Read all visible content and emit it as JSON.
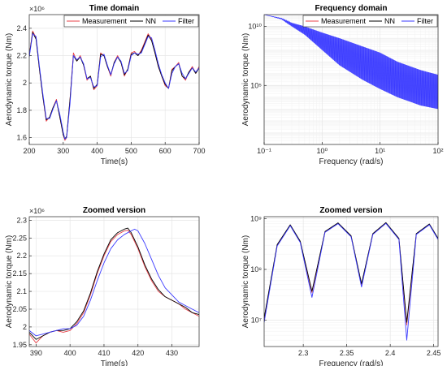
{
  "colors": {
    "Measurement": "#e8434a",
    "NN": "#000000",
    "Filter": "#3a3aff",
    "grid": "#e6e6e6",
    "axis": "#262626"
  },
  "chart_data": [
    {
      "type": "line",
      "title": "Time domain",
      "xlabel": "Time(s)",
      "ylabel": "Aerodynamic torque (Nm)",
      "y_exponent": "×10⁶",
      "xlim": [
        200,
        700
      ],
      "ylim": [
        1.55,
        2.5
      ],
      "xscale": "linear",
      "yscale": "linear",
      "xticks": [
        200,
        300,
        400,
        500,
        600,
        700
      ],
      "yticks": [
        1.6,
        1.8,
        2,
        2.2,
        2.4
      ],
      "ytick_labels": [
        "1.6",
        "1.8",
        "2",
        "2.2",
        "2.4"
      ],
      "grid": true,
      "legend": "top-right",
      "legend_entries": [
        "Measurement",
        "NN",
        "Filter"
      ],
      "series": [
        {
          "name": "Measurement",
          "x": [
            200,
            210,
            220,
            230,
            240,
            250,
            260,
            270,
            280,
            290,
            300,
            305,
            310,
            320,
            330,
            340,
            350,
            360,
            370,
            380,
            390,
            400,
            410,
            420,
            430,
            440,
            450,
            460,
            470,
            480,
            490,
            500,
            510,
            520,
            530,
            540,
            550,
            560,
            570,
            580,
            590,
            600,
            610,
            620,
            630,
            640,
            650,
            660,
            670,
            680,
            690,
            700
          ],
          "y": [
            2.2,
            2.38,
            2.33,
            2.1,
            1.9,
            1.72,
            1.75,
            1.82,
            1.88,
            1.75,
            1.62,
            1.58,
            1.6,
            1.88,
            2.22,
            2.16,
            2.2,
            2.13,
            2.02,
            2.05,
            1.95,
            1.98,
            2.22,
            2.2,
            2.12,
            2.05,
            2.15,
            2.2,
            2.15,
            2.05,
            2.1,
            2.22,
            2.23,
            2.2,
            2.24,
            2.3,
            2.36,
            2.32,
            2.22,
            2.12,
            2.05,
            1.98,
            1.96,
            2.1,
            2.12,
            2.15,
            2.05,
            2.02,
            2.08,
            2.12,
            2.07,
            2.12
          ]
        },
        {
          "name": "NN",
          "x": [
            200,
            210,
            220,
            230,
            240,
            250,
            260,
            270,
            280,
            290,
            300,
            305,
            310,
            320,
            330,
            340,
            350,
            360,
            370,
            380,
            390,
            400,
            410,
            420,
            430,
            440,
            450,
            460,
            470,
            480,
            490,
            500,
            510,
            520,
            530,
            540,
            550,
            560,
            570,
            580,
            590,
            600,
            610,
            620,
            630,
            640,
            650,
            660,
            670,
            680,
            690,
            700
          ],
          "y": [
            2.2,
            2.37,
            2.32,
            2.1,
            1.9,
            1.73,
            1.75,
            1.82,
            1.87,
            1.75,
            1.62,
            1.59,
            1.61,
            1.88,
            2.2,
            2.16,
            2.19,
            2.13,
            2.03,
            2.05,
            1.96,
            1.99,
            2.21,
            2.2,
            2.12,
            2.06,
            2.15,
            2.19,
            2.15,
            2.06,
            2.1,
            2.21,
            2.22,
            2.2,
            2.23,
            2.29,
            2.35,
            2.31,
            2.22,
            2.12,
            2.05,
            1.99,
            1.96,
            2.09,
            2.12,
            2.14,
            2.05,
            2.03,
            2.08,
            2.11,
            2.07,
            2.11
          ]
        },
        {
          "name": "Filter",
          "x": [
            200,
            210,
            220,
            230,
            240,
            250,
            260,
            270,
            280,
            290,
            300,
            305,
            310,
            320,
            330,
            340,
            350,
            360,
            370,
            380,
            390,
            400,
            410,
            420,
            430,
            440,
            450,
            460,
            470,
            480,
            490,
            500,
            510,
            520,
            530,
            540,
            550,
            560,
            570,
            580,
            590,
            600,
            610,
            620,
            630,
            640,
            650,
            660,
            670,
            680,
            690,
            700
          ],
          "y": [
            2.19,
            2.36,
            2.34,
            2.12,
            1.92,
            1.74,
            1.74,
            1.81,
            1.87,
            1.77,
            1.64,
            1.59,
            1.6,
            1.85,
            2.2,
            2.17,
            2.19,
            2.14,
            2.03,
            2.04,
            1.97,
            1.98,
            2.19,
            2.21,
            2.13,
            2.06,
            2.14,
            2.19,
            2.16,
            2.07,
            2.09,
            2.2,
            2.22,
            2.21,
            2.22,
            2.28,
            2.34,
            2.33,
            2.24,
            2.14,
            2.06,
            2.0,
            1.96,
            2.07,
            2.12,
            2.14,
            2.07,
            2.03,
            2.07,
            2.11,
            2.08,
            2.11
          ]
        }
      ]
    },
    {
      "type": "line",
      "title": "Frequency domain",
      "xlabel": "Frequency (rad/s)",
      "ylabel": "Aerodynamic torque (Nm)",
      "xlim": [
        0.1,
        100
      ],
      "ylim": [
        1,
        100000000000
      ],
      "xscale": "log",
      "yscale": "log",
      "xticks": [
        0.1,
        1,
        10,
        100
      ],
      "xtick_labels": [
        "10⁻¹",
        "10⁰",
        "10¹",
        "10²"
      ],
      "yticks": [
        100000,
        10000000000
      ],
      "ytick_labels": [
        "10⁵",
        "10¹⁰"
      ],
      "grid": true,
      "legend": "top-right",
      "legend_entries": [
        "Measurement",
        "NN",
        "Filter"
      ],
      "series": [
        {
          "name": "Filter",
          "x": [
            0.1,
            0.2,
            0.3,
            0.5,
            1,
            2,
            5,
            10,
            20,
            50,
            100
          ],
          "y": [
            100000000000.0,
            50000000000.0,
            20000000000.0,
            10000000000.0,
            3000000000.0,
            1000000000.0,
            200000000.0,
            60000000.0,
            10000000.0,
            2000000.0,
            800000.0
          ],
          "band_low": [
            100000000000.0,
            40000000000.0,
            10000000000.0,
            2000000000.0,
            100000000.0,
            5000000.0,
            300000.0,
            50000.0,
            10000.0,
            2000.0,
            1000.0
          ]
        }
      ]
    },
    {
      "type": "line",
      "title": "Zoomed version",
      "xlabel": "Time(s)",
      "ylabel": "Aerodynamic torque (Nm)",
      "y_exponent": "×10⁶",
      "xlim": [
        388,
        438
      ],
      "ylim": [
        1.945,
        2.31
      ],
      "xscale": "linear",
      "yscale": "linear",
      "xticks": [
        390,
        400,
        410,
        420,
        430
      ],
      "yticks": [
        1.95,
        2,
        2.05,
        2.1,
        2.15,
        2.2,
        2.25,
        2.3
      ],
      "ytick_labels": [
        "1.95",
        "2",
        "2.05",
        "2.1",
        "2.15",
        "2.2",
        "2.25",
        "2.3"
      ],
      "grid": true,
      "series": [
        {
          "name": "Measurement",
          "x": [
            388,
            390,
            392,
            394,
            396,
            398,
            400,
            402,
            404,
            406,
            408,
            410,
            412,
            414,
            416,
            417,
            418,
            420,
            422,
            424,
            426,
            428,
            430,
            432,
            434,
            436,
            438
          ],
          "y": [
            1.98,
            1.955,
            1.975,
            1.985,
            1.99,
            1.985,
            1.99,
            2.01,
            2.04,
            2.09,
            2.15,
            2.2,
            2.24,
            2.26,
            2.27,
            2.272,
            2.26,
            2.22,
            2.17,
            2.13,
            2.1,
            2.085,
            2.075,
            2.065,
            2.05,
            2.04,
            2.03
          ]
        },
        {
          "name": "NN",
          "x": [
            388,
            390,
            392,
            394,
            396,
            398,
            400,
            402,
            404,
            406,
            408,
            410,
            412,
            414,
            416,
            417,
            418,
            420,
            422,
            424,
            426,
            428,
            430,
            432,
            434,
            436,
            438
          ],
          "y": [
            1.985,
            1.965,
            1.975,
            1.985,
            1.99,
            1.99,
            1.995,
            2.015,
            2.045,
            2.095,
            2.155,
            2.205,
            2.245,
            2.265,
            2.275,
            2.278,
            2.265,
            2.225,
            2.175,
            2.135,
            2.105,
            2.085,
            2.075,
            2.065,
            2.055,
            2.04,
            2.035
          ]
        },
        {
          "name": "Filter",
          "x": [
            388,
            390,
            392,
            394,
            396,
            398,
            400,
            402,
            404,
            406,
            408,
            410,
            412,
            414,
            416,
            418,
            419,
            420,
            422,
            424,
            426,
            428,
            430,
            432,
            434,
            436,
            438
          ],
          "y": [
            1.99,
            1.975,
            1.98,
            1.985,
            1.99,
            1.995,
            1.995,
            2.005,
            2.03,
            2.075,
            2.13,
            2.18,
            2.22,
            2.245,
            2.26,
            2.27,
            2.275,
            2.27,
            2.235,
            2.19,
            2.145,
            2.11,
            2.09,
            2.07,
            2.06,
            2.05,
            2.04
          ]
        }
      ]
    },
    {
      "type": "line",
      "title": "Zoomed version",
      "xlabel": "Frequency (rad/s)",
      "ylabel": "Aerodynamic torque (Nm)",
      "xlim": [
        2.255,
        2.455
      ],
      "ylim": [
        3000000,
        1100000000
      ],
      "xscale": "linear",
      "yscale": "log",
      "xticks": [
        2.3,
        2.35,
        2.4,
        2.45
      ],
      "yticks": [
        10000000,
        100000000,
        1000000000
      ],
      "ytick_labels": [
        "10⁷",
        "10⁸",
        "10⁹"
      ],
      "grid": true,
      "series": [
        {
          "name": "Measurement",
          "x": [
            2.255,
            2.27,
            2.285,
            2.2965,
            2.31,
            2.325,
            2.34,
            2.355,
            2.367,
            2.38,
            2.395,
            2.41,
            2.419,
            2.43,
            2.445,
            2.455
          ],
          "y": [
            10000000.0,
            300000000.0,
            750000000.0,
            350000000.0,
            35000000.0,
            550000000.0,
            820000000.0,
            450000000.0,
            50000000.0,
            500000000.0,
            830000000.0,
            400000000.0,
            8000000.0,
            500000000.0,
            780000000.0,
            400000000.0
          ]
        },
        {
          "name": "NN",
          "x": [
            2.255,
            2.27,
            2.285,
            2.2965,
            2.31,
            2.325,
            2.34,
            2.355,
            2.367,
            2.38,
            2.395,
            2.41,
            2.419,
            2.43,
            2.445,
            2.455
          ],
          "y": [
            11000000.0,
            310000000.0,
            760000000.0,
            360000000.0,
            37000000.0,
            560000000.0,
            830000000.0,
            460000000.0,
            52000000.0,
            510000000.0,
            840000000.0,
            410000000.0,
            9000000.0,
            510000000.0,
            790000000.0,
            410000000.0
          ]
        },
        {
          "name": "Filter",
          "x": [
            2.255,
            2.27,
            2.285,
            2.2965,
            2.31,
            2.325,
            2.34,
            2.355,
            2.367,
            2.38,
            2.395,
            2.41,
            2.419,
            2.43,
            2.445,
            2.455
          ],
          "y": [
            9000000.0,
            290000000.0,
            730000000.0,
            340000000.0,
            28000000.0,
            540000000.0,
            800000000.0,
            440000000.0,
            45000000.0,
            490000000.0,
            810000000.0,
            390000000.0,
            4000000.0,
            490000000.0,
            760000000.0,
            390000000.0
          ]
        }
      ]
    }
  ]
}
